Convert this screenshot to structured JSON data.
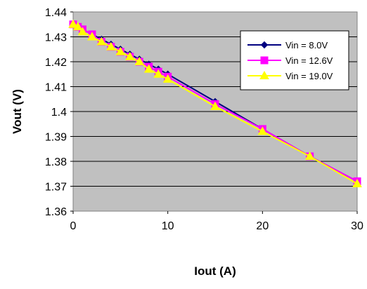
{
  "chart_data": {
    "type": "line",
    "xlabel": "Iout (A)",
    "ylabel": "Vout (V)",
    "xlim": [
      0,
      30
    ],
    "ylim": [
      1.36,
      1.44
    ],
    "x_ticks": [
      "0",
      "10",
      "20",
      "30"
    ],
    "y_ticks": [
      "1.36",
      "1.37",
      "1.38",
      "1.39",
      "1.4",
      "1.41",
      "1.42",
      "1.43",
      "1.44"
    ],
    "plot_background": "#c0c0c0",
    "grid": "horizontal",
    "legend_position": "top-right",
    "series": [
      {
        "name": "Vin = 8.0V",
        "color": "#000080",
        "marker": "diamond",
        "x": [
          0,
          0.5,
          1,
          2,
          3,
          4,
          5,
          6,
          7,
          8,
          9,
          10,
          15,
          20,
          25,
          30
        ],
        "y": [
          1.435,
          1.434,
          1.433,
          1.431,
          1.429,
          1.427,
          1.425,
          1.423,
          1.421,
          1.419,
          1.417,
          1.415,
          1.404,
          1.393,
          1.382,
          1.372
        ]
      },
      {
        "name": "Vin = 12.6V",
        "color": "#ff00ff",
        "marker": "square",
        "x": [
          0,
          0.5,
          1,
          2,
          3,
          4,
          5,
          6,
          7,
          8,
          9,
          10,
          15,
          20,
          25,
          30
        ],
        "y": [
          1.435,
          1.434,
          1.433,
          1.431,
          1.428,
          1.426,
          1.424,
          1.422,
          1.42,
          1.418,
          1.416,
          1.414,
          1.403,
          1.393,
          1.382,
          1.372
        ]
      },
      {
        "name": "Vin = 19.0V",
        "color": "#ffff00",
        "marker": "triangle",
        "x": [
          0,
          0.5,
          1,
          2,
          3,
          4,
          5,
          6,
          7,
          8,
          9,
          10,
          15,
          20,
          25,
          30
        ],
        "y": [
          1.435,
          1.434,
          1.432,
          1.43,
          1.428,
          1.426,
          1.424,
          1.422,
          1.42,
          1.417,
          1.415,
          1.413,
          1.402,
          1.392,
          1.382,
          1.371
        ]
      }
    ]
  }
}
